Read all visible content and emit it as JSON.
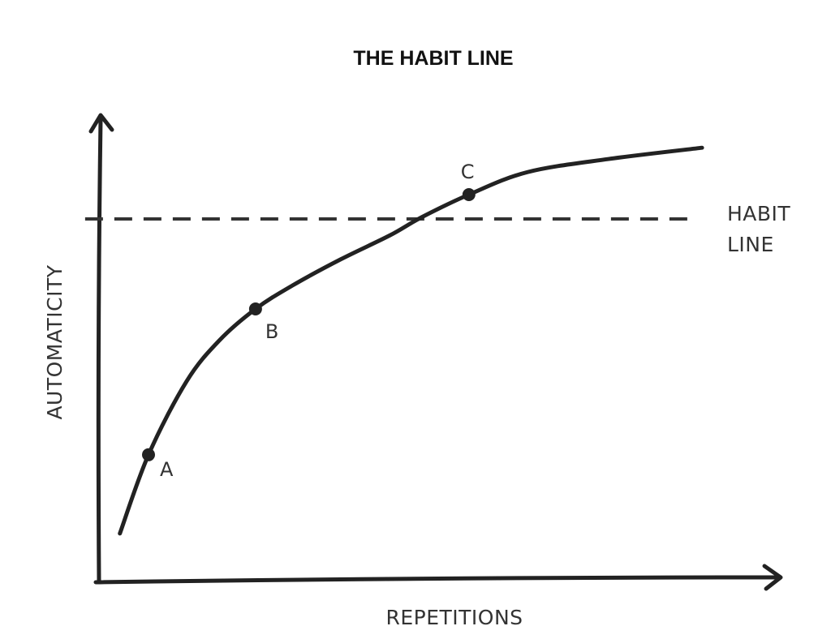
{
  "chart_data": {
    "type": "line",
    "title": "THE HABIT LINE",
    "xlabel": "REPETITIONS",
    "ylabel": "AUTOMATICITY",
    "xlim": [
      0,
      100
    ],
    "ylim": [
      0,
      100
    ],
    "grid": false,
    "series": [
      {
        "x": [
          3.3,
          7.5,
          13.1,
          17.9,
          23.2,
          28.6,
          35.7,
          42.9,
          47.6,
          54.5,
          63.1,
          75.0,
          88.7
        ],
        "y": [
          10.4,
          27.2,
          42.9,
          51.6,
          58.3,
          63.3,
          68.9,
          74.0,
          77.9,
          82.7,
          87.5,
          90.3,
          92.7
        ],
        "color": "#222222"
      }
    ],
    "points": [
      {
        "label": "A",
        "x": 7.5,
        "y": 27.2
      },
      {
        "label": "B",
        "x": 23.2,
        "y": 58.3
      },
      {
        "label": "C",
        "x": 54.5,
        "y": 82.7
      }
    ],
    "reference_line": {
      "y": 77.5,
      "x_start": -1.8,
      "x_end": 88,
      "style": "dashed",
      "label_lines": [
        "HABIT",
        "LINE"
      ]
    }
  }
}
